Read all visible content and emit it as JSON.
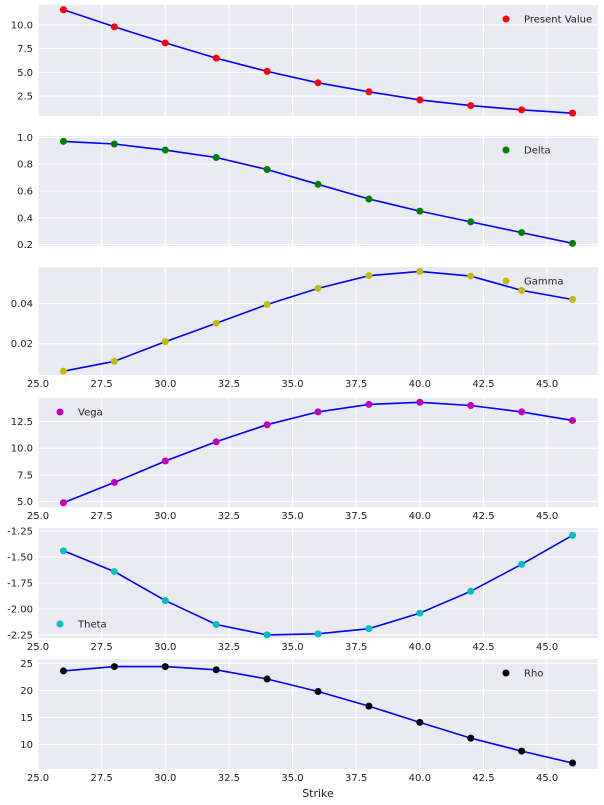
{
  "colors": {
    "panel_bg": "#EAEAF2",
    "grid": "#FFFFFF",
    "line": "#0000FF"
  },
  "chart_data": {
    "type": "line",
    "x": [
      26,
      28,
      30,
      32,
      34,
      36,
      38,
      40,
      42,
      44,
      46
    ],
    "xlabel": "Strike",
    "xlim": [
      25,
      47
    ],
    "x_ticks": [
      "25.0",
      "27.5",
      "30.0",
      "32.5",
      "35.0",
      "37.5",
      "40.0",
      "42.5",
      "45.0"
    ],
    "grid": true,
    "panels": [
      {
        "name": "Present Value",
        "marker_color": "#FF0000",
        "values": [
          11.6,
          9.8,
          8.1,
          6.5,
          5.1,
          3.9,
          2.95,
          2.1,
          1.5,
          1.05,
          0.7
        ],
        "ylim": [
          0.4,
          12.1
        ],
        "y_ticks": [
          "2.5",
          "5.0",
          "7.5",
          "10.0"
        ],
        "legend": "top-right",
        "x_ticks_visible": false
      },
      {
        "name": "Delta",
        "marker_color": "#008000",
        "values": [
          0.97,
          0.95,
          0.905,
          0.85,
          0.76,
          0.65,
          0.54,
          0.45,
          0.37,
          0.29,
          0.21
        ],
        "ylim": [
          0.19,
          1.01
        ],
        "y_ticks": [
          "0.2",
          "0.4",
          "0.6",
          "0.8",
          "1.0"
        ],
        "legend": "top-right",
        "x_ticks_visible": false
      },
      {
        "name": "Gamma",
        "marker_color": "#BFBF00",
        "values": [
          0.0064,
          0.0113,
          0.021,
          0.0301,
          0.0394,
          0.0474,
          0.0537,
          0.0558,
          0.0535,
          0.0464,
          0.0419
        ],
        "ylim": [
          0.0045,
          0.058
        ],
        "y_ticks": [
          "0.02",
          "0.04"
        ],
        "legend": "top-right",
        "x_ticks_visible": true
      },
      {
        "name": "Vega",
        "marker_color": "#BF00BF",
        "values": [
          4.9,
          6.8,
          8.8,
          10.6,
          12.2,
          13.4,
          14.1,
          14.3,
          14.0,
          13.4,
          12.6
        ],
        "ylim": [
          4.5,
          14.7
        ],
        "y_ticks": [
          "5.0",
          "7.5",
          "10.0",
          "12.5"
        ],
        "legend": "top-left",
        "x_ticks_visible": true
      },
      {
        "name": "Theta",
        "marker_color": "#00BFBF",
        "values": [
          -1.44,
          -1.64,
          -1.92,
          -2.15,
          -2.25,
          -2.24,
          -2.19,
          -2.04,
          -1.83,
          -1.57,
          -1.29
        ],
        "ylim": [
          -2.28,
          -1.22
        ],
        "y_ticks": [
          "-1.25",
          "-1.50",
          "-1.75",
          "-2.00",
          "-2.25"
        ],
        "legend": "bottom-left",
        "x_ticks_visible": true
      },
      {
        "name": "Rho",
        "marker_color": "#000000",
        "values": [
          23.6,
          24.4,
          24.4,
          23.8,
          22.1,
          19.8,
          17.1,
          14.1,
          11.2,
          8.8,
          6.6
        ],
        "ylim": [
          5.5,
          25.8
        ],
        "y_ticks": [
          "10",
          "15",
          "20",
          "25"
        ],
        "legend": "top-right",
        "x_ticks_visible": true
      }
    ]
  }
}
